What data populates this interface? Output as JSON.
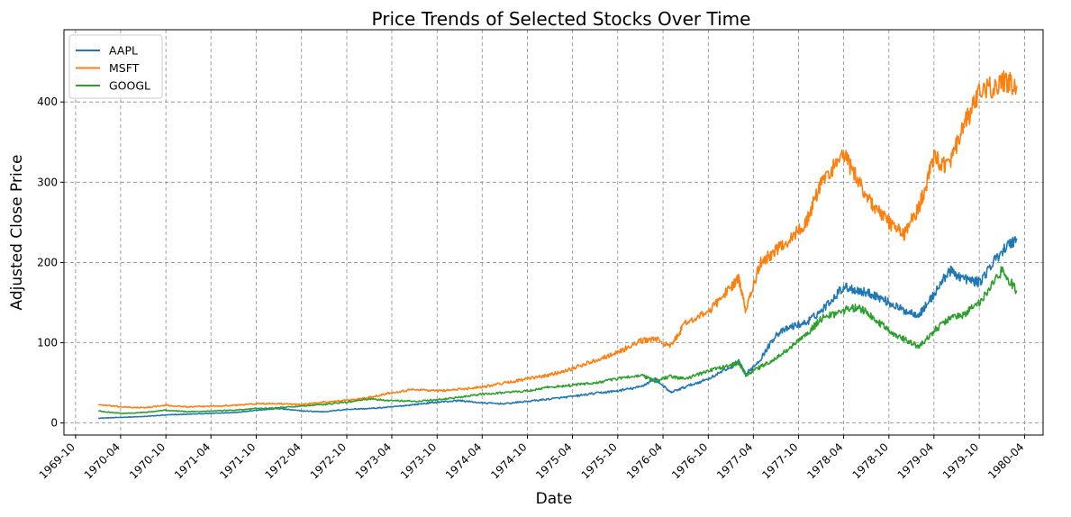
{
  "chart_data": {
    "type": "line",
    "title": "Price Trends of Selected Stocks Over Time",
    "xlabel": "Date",
    "ylabel": "Adjusted Close Price",
    "ylim": [
      -15,
      490
    ],
    "xlim": [
      "1969-08-15",
      "1980-06-15"
    ],
    "yticks": [
      0,
      100,
      200,
      300,
      400
    ],
    "xticks": [
      "1969-10",
      "1970-04",
      "1970-10",
      "1971-04",
      "1971-10",
      "1972-04",
      "1972-10",
      "1973-04",
      "1973-10",
      "1974-04",
      "1974-10",
      "1975-04",
      "1975-10",
      "1976-04",
      "1976-10",
      "1977-04",
      "1977-10",
      "1978-04",
      "1978-10",
      "1979-04",
      "1979-10",
      "1980-04"
    ],
    "grid": true,
    "legend_position": "top-left",
    "series": [
      {
        "name": "AAPL",
        "color": "#1f77b4",
        "x": [
          "1970-01",
          "1970-04",
          "1970-07",
          "1970-10",
          "1971-01",
          "1971-04",
          "1971-07",
          "1971-10",
          "1972-01",
          "1972-04",
          "1972-07",
          "1972-10",
          "1973-01",
          "1973-04",
          "1973-07",
          "1973-10",
          "1974-01",
          "1974-04",
          "1974-07",
          "1974-10",
          "1975-01",
          "1975-04",
          "1975-07",
          "1975-10",
          "1976-01",
          "1976-03",
          "1976-05",
          "1976-07",
          "1976-10",
          "1977-01",
          "1977-02",
          "1977-03",
          "1977-05",
          "1977-07",
          "1977-09",
          "1977-11",
          "1978-01",
          "1978-04",
          "1978-06",
          "1978-08",
          "1978-10",
          "1978-12",
          "1979-02",
          "1979-04",
          "1979-06",
          "1979-08",
          "1979-10",
          "1980-01",
          "1980-03"
        ],
        "values": [
          6,
          7,
          8,
          10,
          11,
          12,
          13,
          16,
          18,
          15,
          14,
          17,
          18,
          20,
          23,
          26,
          28,
          25,
          24,
          27,
          30,
          33,
          37,
          40,
          45,
          55,
          38,
          45,
          55,
          70,
          77,
          60,
          80,
          110,
          120,
          125,
          140,
          170,
          165,
          160,
          150,
          140,
          135,
          160,
          190,
          180,
          175,
          215,
          230
        ]
      },
      {
        "name": "MSFT",
        "color": "#ff7f0e",
        "x": [
          "1970-01",
          "1970-04",
          "1970-07",
          "1970-10",
          "1971-01",
          "1971-04",
          "1971-07",
          "1971-10",
          "1972-01",
          "1972-04",
          "1972-07",
          "1972-10",
          "1973-01",
          "1973-04",
          "1973-07",
          "1973-10",
          "1974-01",
          "1974-04",
          "1974-07",
          "1974-10",
          "1975-01",
          "1975-04",
          "1975-07",
          "1975-10",
          "1976-01",
          "1976-03",
          "1976-05",
          "1976-07",
          "1976-10",
          "1977-01",
          "1977-02",
          "1977-03",
          "1977-05",
          "1977-07",
          "1977-09",
          "1977-11",
          "1978-01",
          "1978-04",
          "1978-06",
          "1978-08",
          "1978-10",
          "1978-12",
          "1979-02",
          "1979-04",
          "1979-06",
          "1979-08",
          "1979-10",
          "1980-01",
          "1980-03"
        ],
        "values": [
          23,
          20,
          19,
          22,
          20,
          21,
          22,
          24,
          24,
          23,
          26,
          28,
          32,
          38,
          42,
          40,
          42,
          45,
          50,
          55,
          60,
          68,
          78,
          88,
          102,
          105,
          95,
          125,
          138,
          170,
          180,
          140,
          200,
          215,
          230,
          250,
          300,
          335,
          300,
          270,
          250,
          235,
          270,
          330,
          320,
          370,
          410,
          425,
          420
        ]
      },
      {
        "name": "GOOGL",
        "color": "#2ca02c",
        "x": [
          "1970-01",
          "1970-04",
          "1970-07",
          "1970-10",
          "1971-01",
          "1971-04",
          "1971-07",
          "1971-10",
          "1972-01",
          "1972-04",
          "1972-07",
          "1972-10",
          "1973-01",
          "1973-04",
          "1973-07",
          "1973-10",
          "1974-01",
          "1974-04",
          "1974-07",
          "1974-10",
          "1975-01",
          "1975-04",
          "1975-07",
          "1975-10",
          "1976-01",
          "1976-03",
          "1976-05",
          "1976-07",
          "1976-10",
          "1977-01",
          "1977-02",
          "1977-03",
          "1977-05",
          "1977-07",
          "1977-09",
          "1977-11",
          "1978-01",
          "1978-04",
          "1978-06",
          "1978-08",
          "1978-10",
          "1978-12",
          "1979-02",
          "1979-04",
          "1979-06",
          "1979-08",
          "1979-10",
          "1980-01",
          "1980-03"
        ],
        "values": [
          15,
          12,
          13,
          16,
          14,
          15,
          16,
          18,
          19,
          21,
          23,
          26,
          30,
          28,
          27,
          29,
          32,
          36,
          38,
          40,
          45,
          47,
          50,
          55,
          60,
          52,
          58,
          55,
          65,
          72,
          75,
          60,
          70,
          80,
          95,
          110,
          130,
          140,
          145,
          130,
          115,
          105,
          95,
          115,
          130,
          135,
          150,
          190,
          165
        ]
      }
    ]
  }
}
